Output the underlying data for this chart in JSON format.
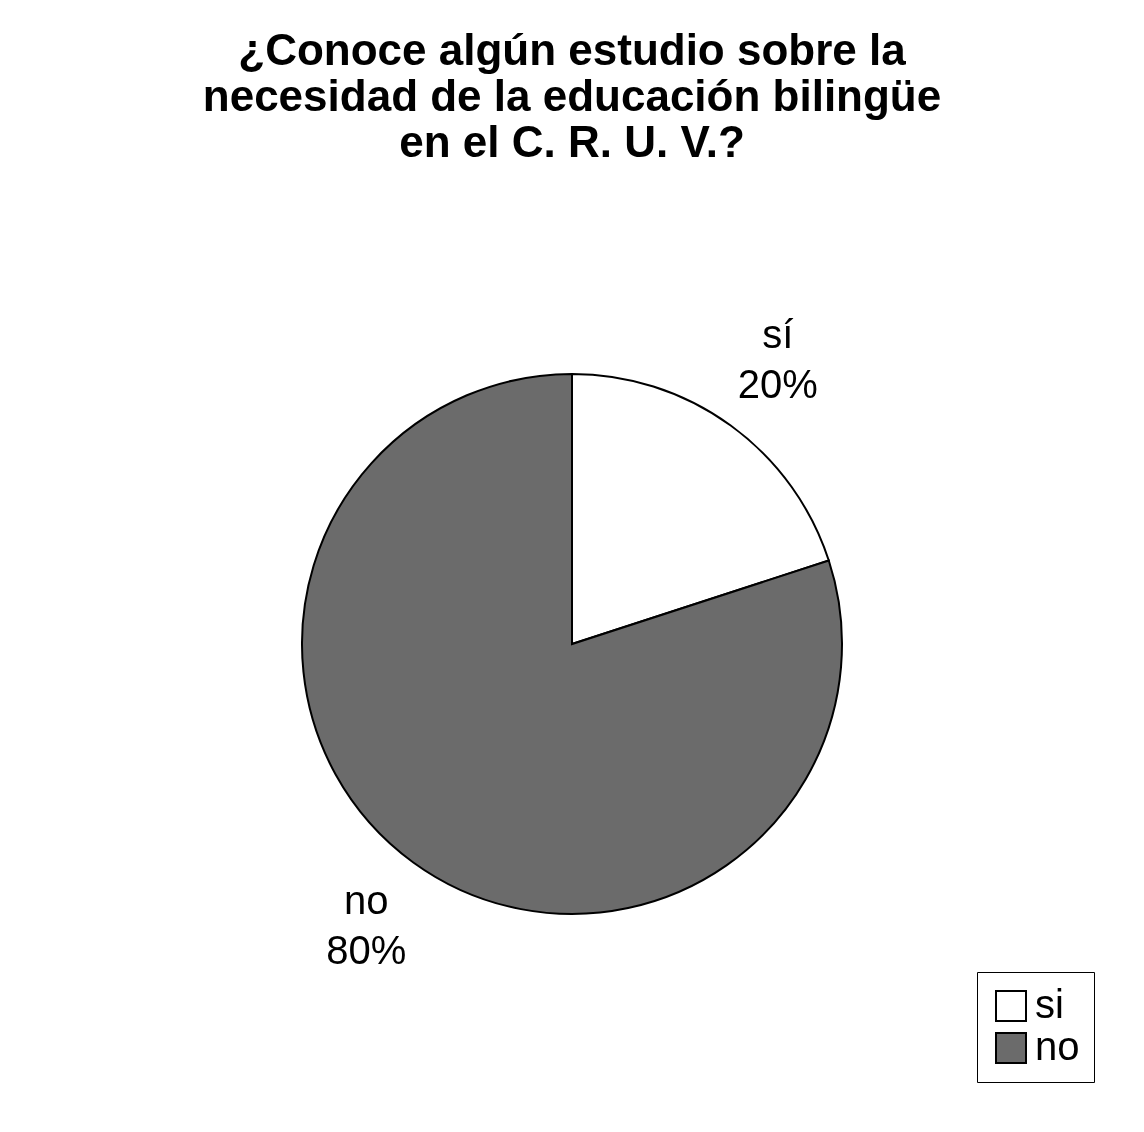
{
  "chart_data": {
    "type": "pie",
    "title": [
      "¿Conoce algún estudio sobre la",
      "necesidad de la educación bilingüe",
      "en el C. R. U. V.?"
    ],
    "categories": [
      "si",
      "no"
    ],
    "values": [
      20,
      80
    ],
    "colors": [
      "#ffffff",
      "#6b6b6b"
    ],
    "value_labels": [
      "20%",
      "80%"
    ],
    "annotations": [
      {
        "text": "sí",
        "x": "si"
      },
      {
        "text": "no",
        "x": "no"
      }
    ],
    "legend": "bottom right"
  }
}
